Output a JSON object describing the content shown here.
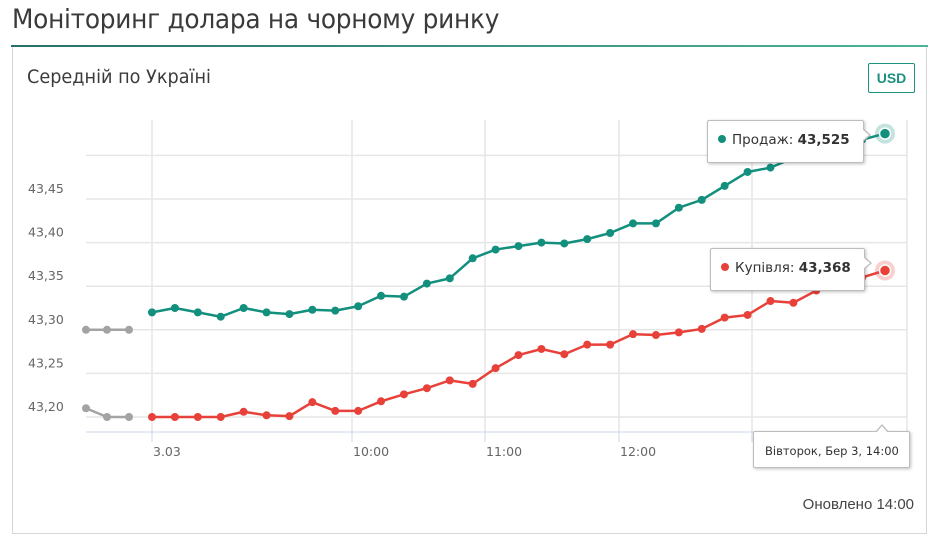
{
  "page": {
    "title": "Моніторинг долара на чорному ринку"
  },
  "card": {
    "title": "Середній по Україні",
    "currency_button": "USD",
    "updated": "Оновлено 14:00"
  },
  "colors": {
    "sell": "#138f7d",
    "buy": "#e8413a",
    "previous_day": "#a3a3a3",
    "accent_rule_start": "#2a6f6a",
    "accent_rule_end": "#4db39a"
  },
  "tooltips": {
    "sell": {
      "label": "Продаж:",
      "value": "43,525"
    },
    "buy": {
      "label": "Купівля:",
      "value": "43,368"
    },
    "date": "Вівторок, Бер 3, 14:00"
  },
  "chart_data": {
    "type": "line",
    "title": "Середній по Україні",
    "xlabel": "",
    "ylabel": "",
    "y_ticks": [
      "43,20",
      "43,25",
      "43,30",
      "43,35",
      "43,40",
      "43,45"
    ],
    "x_ticks": [
      "3.03",
      "10:00",
      "11:00",
      "12:00"
    ],
    "ylim": [
      43.18,
      43.54
    ],
    "grid": true,
    "legend": "none (tooltips show series names)",
    "x_interval_minutes": 10,
    "previous_day": {
      "sell": [
        43.3,
        43.3,
        43.3
      ],
      "buy": [
        43.21,
        43.2,
        43.2
      ]
    },
    "series": [
      {
        "name": "Продаж",
        "values": [
          43.32,
          43.325,
          43.32,
          43.315,
          43.325,
          43.32,
          43.318,
          43.323,
          43.322,
          43.327,
          43.339,
          43.338,
          43.353,
          43.359,
          43.382,
          43.392,
          43.396,
          43.4,
          43.399,
          43.404,
          43.411,
          43.422,
          43.422,
          43.44,
          43.449,
          43.465,
          43.481,
          43.486,
          43.497,
          43.505,
          43.512,
          43.518,
          43.525
        ]
      },
      {
        "name": "Купівля",
        "values": [
          43.2,
          43.2,
          43.2,
          43.2,
          43.206,
          43.202,
          43.201,
          43.217,
          43.207,
          43.207,
          43.218,
          43.226,
          43.233,
          43.242,
          43.238,
          43.256,
          43.271,
          43.278,
          43.272,
          43.283,
          43.283,
          43.295,
          43.294,
          43.297,
          43.301,
          43.314,
          43.317,
          43.333,
          43.331,
          43.345,
          43.353,
          43.36,
          43.368
        ]
      }
    ]
  }
}
